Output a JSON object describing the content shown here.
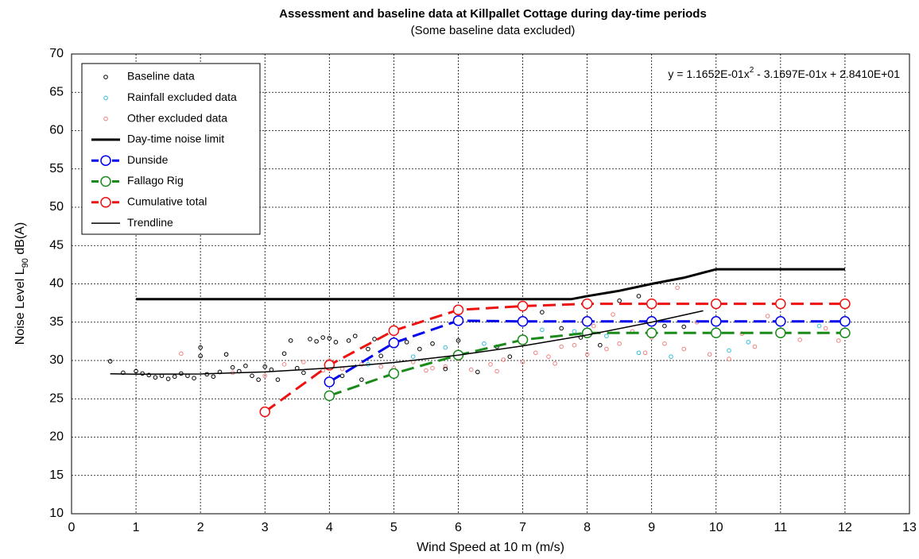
{
  "chart_data": {
    "type": "scatter",
    "title": "Assessment and baseline data at Killpallet Cottage during day-time periods",
    "subtitle": "(Some baseline data excluded)",
    "x_label": "Wind Speed at 10 m (m/s)",
    "y_label_parts": [
      "Noise Level L",
      "90",
      " dB(A)"
    ],
    "equation_parts": [
      "y = 1.1652E-01x",
      "2",
      " - 3.1697E-01x + 2.8410E+01"
    ],
    "xlim": [
      0,
      13
    ],
    "ylim": [
      10,
      70
    ],
    "xticks": [
      0,
      1,
      2,
      3,
      4,
      5,
      6,
      7,
      8,
      9,
      10,
      11,
      12,
      13
    ],
    "yticks": [
      10,
      15,
      20,
      25,
      30,
      35,
      40,
      45,
      50,
      55,
      60,
      65,
      70
    ],
    "grid": true,
    "legend": "upper left",
    "series": [
      {
        "name": "Baseline data",
        "color": "#000000",
        "markers": "small",
        "line": false,
        "x": [
          0.6,
          0.8,
          1.0,
          1.1,
          1.2,
          1.3,
          1.4,
          1.5,
          1.6,
          1.7,
          1.8,
          1.9,
          2.0,
          2.0,
          2.1,
          2.2,
          2.3,
          2.4,
          2.5,
          2.6,
          2.7,
          2.8,
          2.9,
          3.0,
          3.1,
          3.2,
          3.3,
          3.4,
          3.5,
          3.6,
          3.7,
          3.8,
          3.9,
          4.0,
          4.0,
          4.1,
          4.2,
          4.3,
          4.4,
          4.5,
          4.6,
          4.7,
          4.8,
          5.0,
          5.2,
          5.4,
          5.6,
          5.8,
          6.0,
          6.3,
          6.6,
          6.8,
          7.0,
          7.3,
          7.6,
          7.9,
          8.2,
          8.5,
          8.8,
          9.2,
          9.5
        ],
        "values": [
          29.9,
          28.4,
          28.6,
          28.3,
          28.1,
          27.8,
          28.0,
          27.6,
          27.9,
          28.3,
          28.0,
          27.7,
          30.6,
          31.7,
          28.2,
          27.9,
          28.5,
          30.8,
          29.1,
          28.6,
          29.3,
          28.0,
          27.5,
          29.2,
          28.8,
          27.5,
          30.9,
          32.6,
          29.0,
          28.4,
          32.8,
          32.5,
          33.0,
          32.9,
          27.2,
          32.4,
          28.0,
          32.6,
          33.2,
          27.5,
          31.5,
          32.8,
          30.6,
          32.0,
          32.4,
          31.5,
          32.2,
          28.9,
          32.6,
          28.5,
          31.8,
          30.5,
          32.4,
          36.3,
          34.2,
          33.0,
          32.0,
          37.8,
          38.4,
          34.5,
          34.4
        ]
      },
      {
        "name": "Rainfall excluded data",
        "color": "#33bbdd",
        "markers": "small",
        "line": false,
        "x": [
          4.6,
          5.3,
          5.8,
          6.4,
          7.0,
          7.3,
          7.8,
          8.3,
          8.8,
          9.3,
          10.2,
          10.5,
          11.6
        ],
        "values": [
          29.5,
          30.5,
          31.7,
          32.2,
          32.8,
          34.0,
          33.8,
          33.2,
          31.0,
          30.5,
          31.3,
          32.4,
          34.5
        ]
      },
      {
        "name": "Other excluded data",
        "color": "#f08080",
        "markers": "small",
        "line": false,
        "x": [
          1.7,
          2.5,
          3.0,
          3.3,
          3.6,
          3.9,
          4.2,
          4.5,
          4.8,
          5.0,
          5.3,
          5.5,
          5.8,
          6.0,
          6.2,
          6.5,
          6.7,
          7.0,
          7.2,
          7.4,
          7.6,
          7.8,
          8.0,
          8.1,
          8.3,
          8.5,
          8.7,
          8.9,
          9.0,
          9.2,
          9.4,
          9.5,
          9.7,
          9.9,
          10.0,
          10.2,
          10.4,
          10.6,
          10.8,
          11.0,
          11.3,
          11.7,
          11.9,
          4.0,
          5.6,
          6.6,
          7.5,
          8.4
        ],
        "values": [
          30.9,
          28.4,
          28.0,
          29.5,
          29.8,
          28.7,
          28.9,
          29.5,
          29.2,
          29.0,
          29.8,
          28.7,
          29.2,
          30.2,
          28.8,
          29.5,
          30.1,
          29.8,
          31.0,
          30.5,
          31.8,
          32.0,
          30.8,
          34.5,
          31.5,
          32.2,
          33.8,
          31.0,
          33.0,
          32.2,
          39.5,
          31.5,
          35.0,
          30.8,
          35.5,
          30.2,
          33.5,
          31.8,
          35.8,
          35.0,
          32.7,
          34.2,
          32.6,
          30.0,
          29.0,
          28.6,
          29.6,
          36.0
        ]
      },
      {
        "name": "Day-time noise limit",
        "color": "#000000",
        "markers": "none",
        "line": "solid",
        "width": 3,
        "x": [
          1,
          7.75,
          8,
          8.5,
          9,
          9.5,
          10,
          12
        ],
        "values": [
          38,
          38,
          38.4,
          39.1,
          40,
          40.8,
          41.9,
          41.9
        ]
      },
      {
        "name": "Dunside",
        "color": "#0000ee",
        "markers": "large",
        "line": "dashed",
        "width": 3,
        "x": [
          4,
          5,
          6,
          7,
          8,
          9,
          10,
          11,
          12
        ],
        "values": [
          27.2,
          32.3,
          35.2,
          35.1,
          35.1,
          35.1,
          35.1,
          35.1,
          35.1
        ]
      },
      {
        "name": "Fallago Rig",
        "color": "#1a8a1a",
        "markers": "large",
        "line": "dashed",
        "width": 3,
        "x": [
          4,
          5,
          6,
          7,
          8,
          9,
          10,
          11,
          12
        ],
        "values": [
          25.4,
          28.3,
          30.7,
          32.7,
          33.6,
          33.6,
          33.6,
          33.6,
          33.6
        ]
      },
      {
        "name": "Cumulative total",
        "color": "#ee1111",
        "markers": "large",
        "line": "dashed",
        "width": 3,
        "x": [
          3,
          4,
          5,
          6,
          7,
          8,
          9,
          10,
          11,
          12
        ],
        "values": [
          23.3,
          29.4,
          33.9,
          36.6,
          37.1,
          37.4,
          37.4,
          37.4,
          37.4,
          37.4
        ]
      },
      {
        "name": "Trendline",
        "color": "#000000",
        "markers": "none",
        "line": "solid",
        "width": 1.5,
        "x": [
          0.6,
          1,
          2,
          3,
          4,
          5,
          6,
          7,
          8,
          9,
          9.8
        ],
        "values": [
          28.26,
          28.21,
          28.24,
          28.51,
          29.01,
          29.74,
          30.7,
          31.9,
          33.33,
          35.0,
          36.49
        ]
      }
    ]
  }
}
